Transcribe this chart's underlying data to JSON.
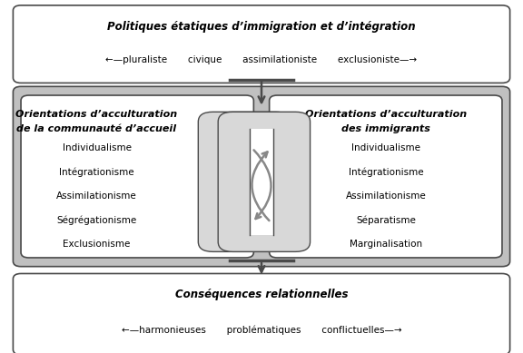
{
  "top_box": {
    "title": "Politiques étatiques d’immigration et d’intégration",
    "subtitle_left": "←—pluraliste",
    "subtitle_items": [
      "civique",
      "assimilationiste"
    ],
    "subtitle_right": "exclusioniste—→",
    "subtitle_full": "←—pluraliste       civique       assimilationiste       exclusioniste—→"
  },
  "left_box": {
    "title_line1": "Orientations d’acculturation",
    "title_line2": "de la communauté d’accueil",
    "items": [
      "Individualisme",
      "Intégrationisme",
      "Assimilationisme",
      "Ségrégationisme",
      "Exclusionisme"
    ]
  },
  "right_box": {
    "title_line1": "Orientations d’acculturation",
    "title_line2": "des immigrants",
    "items": [
      "Individualisme",
      "Intégrationisme",
      "Assimilationisme",
      "Séparatisme",
      "Marginalisation"
    ]
  },
  "bottom_box": {
    "title": "Conséquences relationnelles",
    "subtitle_full": "←—harmonieuses       problématiques       conflictuelles—→"
  },
  "bg_color": "#ffffff",
  "box_edge_color": "#4a4a4a",
  "gray_bg": "#c0c0c0",
  "arrow_color": "#555555",
  "center_shape_color": "#d8d8d8"
}
